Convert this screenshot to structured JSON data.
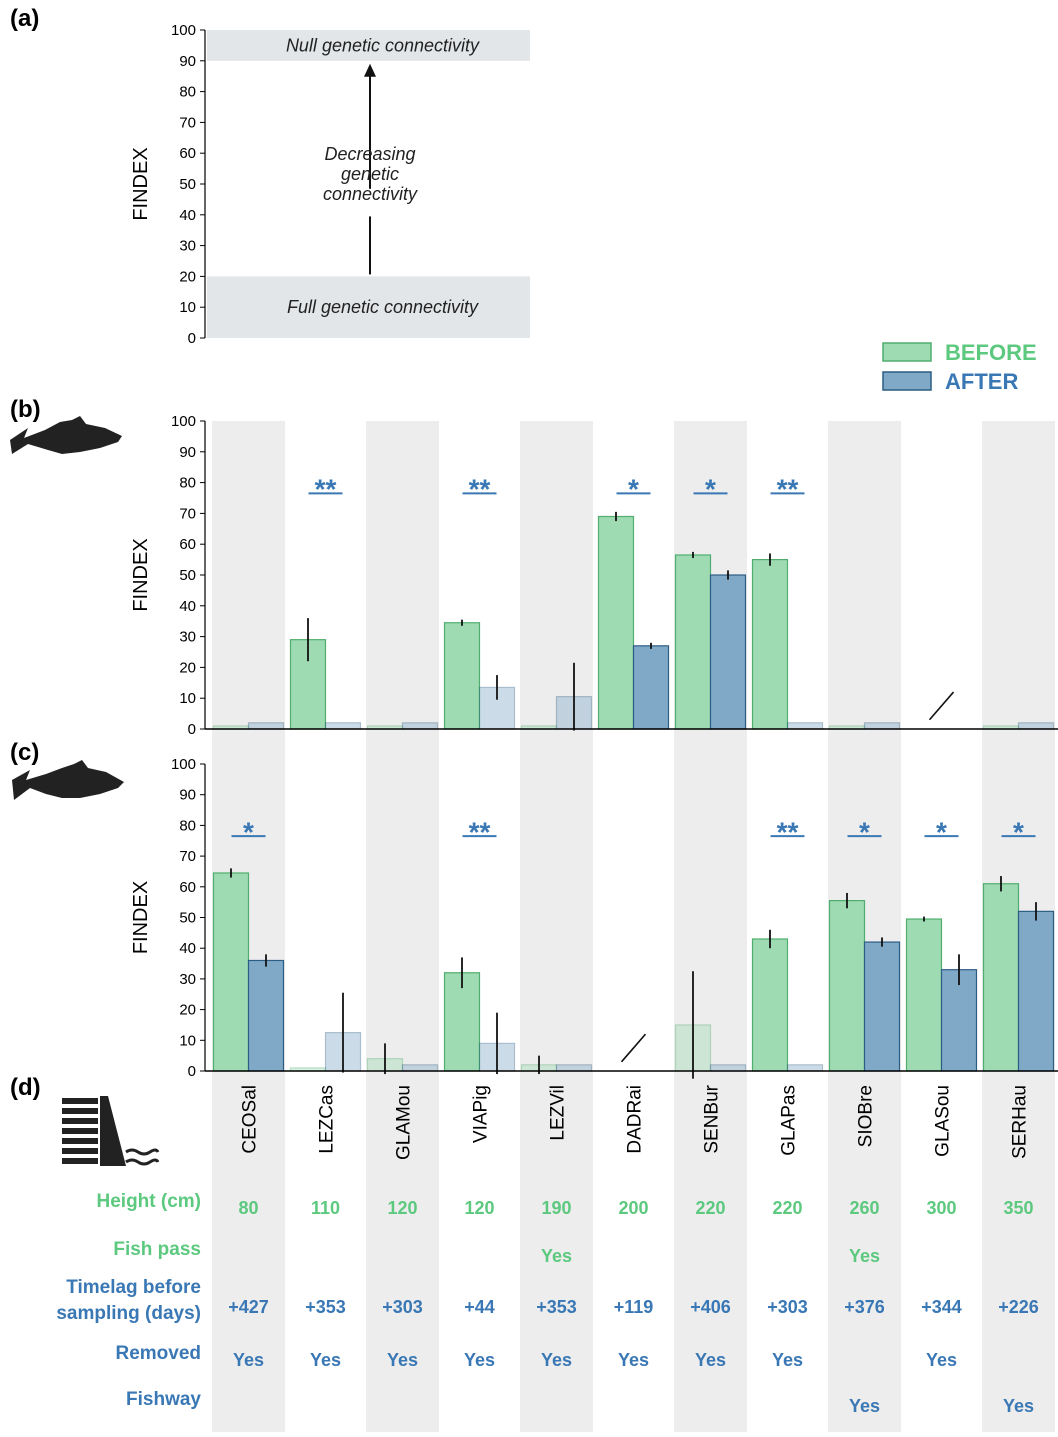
{
  "chart_data": [
    {
      "type": "band",
      "label": "(a)",
      "ylabel": "FINDEX",
      "ylim": [
        0,
        100
      ],
      "yticks": [
        0,
        10,
        20,
        30,
        40,
        50,
        60,
        70,
        80,
        90,
        100
      ],
      "bands": [
        {
          "from": 90,
          "to": 100,
          "label": "Null genetic connectivity"
        },
        {
          "from": 0,
          "to": 20,
          "label": "Full genetic connectivity"
        }
      ],
      "annotation": [
        "Decreasing",
        "genetic",
        "connectivity"
      ],
      "band_color": "#e3e6e8"
    },
    {
      "type": "bar",
      "label": "(b)",
      "ylabel": "FINDEX",
      "ylim": [
        0,
        100
      ],
      "yticks": [
        0,
        10,
        20,
        30,
        40,
        50,
        60,
        70,
        80,
        90,
        100
      ],
      "series": [
        {
          "name": "BEFORE",
          "color": "#9edbb3",
          "stroke": "#4fae6e",
          "text_color": "#5cc97f",
          "values": [
            1,
            29,
            1,
            34.5,
            1,
            69,
            56.5,
            55,
            1,
            null,
            1
          ],
          "errors": [
            null,
            7,
            null,
            1,
            null,
            1.5,
            1,
            2,
            null,
            null,
            null
          ],
          "faded": [
            true,
            false,
            true,
            false,
            true,
            false,
            false,
            false,
            true,
            false,
            true
          ]
        },
        {
          "name": "AFTER",
          "color": "#80a9c8",
          "stroke": "#2c5d84",
          "text_color": "#3a78b5",
          "values": [
            2,
            2,
            2,
            13.5,
            10.5,
            27,
            50,
            2,
            2,
            null,
            2
          ],
          "errors": [
            null,
            null,
            null,
            4,
            11,
            1,
            1.5,
            null,
            null,
            null,
            null
          ],
          "faded": [
            true,
            true,
            true,
            true,
            true,
            false,
            false,
            true,
            true,
            false,
            true
          ]
        }
      ],
      "significance": [
        null,
        "**",
        null,
        "**",
        null,
        "*",
        "*",
        "**",
        null,
        null,
        null
      ]
    },
    {
      "type": "bar",
      "label": "(c)",
      "ylabel": "FINDEX",
      "ylim": [
        0,
        100
      ],
      "yticks": [
        0,
        10,
        20,
        30,
        40,
        50,
        60,
        70,
        80,
        90,
        100
      ],
      "categories": [
        "CEOSal",
        "LEZCas",
        "GLAMou",
        "VIAPig",
        "LEZVil",
        "DADRai",
        "SENBur",
        "GLAPas",
        "SIOBre",
        "GLASou",
        "SERHau"
      ],
      "series": [
        {
          "color": "#9edbb3",
          "stroke": "#4fae6e",
          "values": [
            64.5,
            1,
            4,
            32,
            2,
            null,
            15,
            43,
            55.5,
            49.5,
            61
          ],
          "errors": [
            1.5,
            null,
            5,
            5,
            3,
            null,
            17.5,
            3,
            2.5,
            0.8,
            2.5
          ],
          "faded": [
            false,
            true,
            true,
            false,
            true,
            false,
            true,
            false,
            false,
            false,
            false
          ]
        },
        {
          "color": "#80a9c8",
          "stroke": "#2c5d84",
          "values": [
            36,
            12.5,
            2,
            9,
            2,
            null,
            2,
            2,
            42,
            33,
            52
          ],
          "errors": [
            2,
            13,
            null,
            10,
            null,
            null,
            null,
            null,
            1.5,
            5,
            3
          ],
          "faded": [
            false,
            true,
            true,
            true,
            true,
            false,
            true,
            true,
            false,
            false,
            false
          ]
        }
      ],
      "significance": [
        "*",
        null,
        null,
        "**",
        null,
        null,
        null,
        "**",
        "*",
        "*",
        "*"
      ]
    }
  ],
  "table": {
    "label": "(d)",
    "rows": [
      {
        "label": [
          "Height (cm)"
        ],
        "color": "#5cc97f",
        "cells": [
          80,
          110,
          120,
          120,
          190,
          200,
          220,
          220,
          260,
          300,
          350
        ]
      },
      {
        "label": [
          "Fish pass"
        ],
        "color": "#5cc97f",
        "cells": [
          null,
          null,
          null,
          null,
          "Yes",
          null,
          null,
          null,
          "Yes",
          null,
          null
        ]
      },
      {
        "label": [
          "Timelag before",
          "sampling (days)"
        ],
        "color": "#3a78b5",
        "cells": [
          "+427",
          "+353",
          "+303",
          "+44",
          "+353",
          "+119",
          "+406",
          "+303",
          "+376",
          "+344",
          "+226"
        ]
      },
      {
        "label": [
          "Removed"
        ],
        "color": "#3a78b5",
        "cells": [
          "Yes",
          "Yes",
          "Yes",
          "Yes",
          "Yes",
          "Yes",
          "Yes",
          "Yes",
          null,
          "Yes",
          null
        ]
      },
      {
        "label": [
          "Fishway"
        ],
        "color": "#3a78b5",
        "cells": [
          null,
          null,
          null,
          null,
          null,
          null,
          null,
          null,
          "Yes",
          null,
          "Yes"
        ]
      }
    ]
  }
}
